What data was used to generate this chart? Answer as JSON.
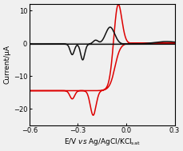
{
  "title": "",
  "xlabel": "E/V \\textit{vs} Ag/AgCl/KCl$_{sat}$",
  "ylabel": "Current/μA",
  "xlim": [
    -0.6,
    0.3
  ],
  "ylim": [
    -25,
    12
  ],
  "xticks": [
    -0.6,
    -0.3,
    0.0,
    0.3
  ],
  "yticks": [
    -20,
    -10,
    0,
    10
  ],
  "black_color": "#111111",
  "red_color": "#dd0000",
  "bg_color": "#f0f0f0",
  "figsize": [
    2.3,
    1.89
  ],
  "dpi": 100
}
